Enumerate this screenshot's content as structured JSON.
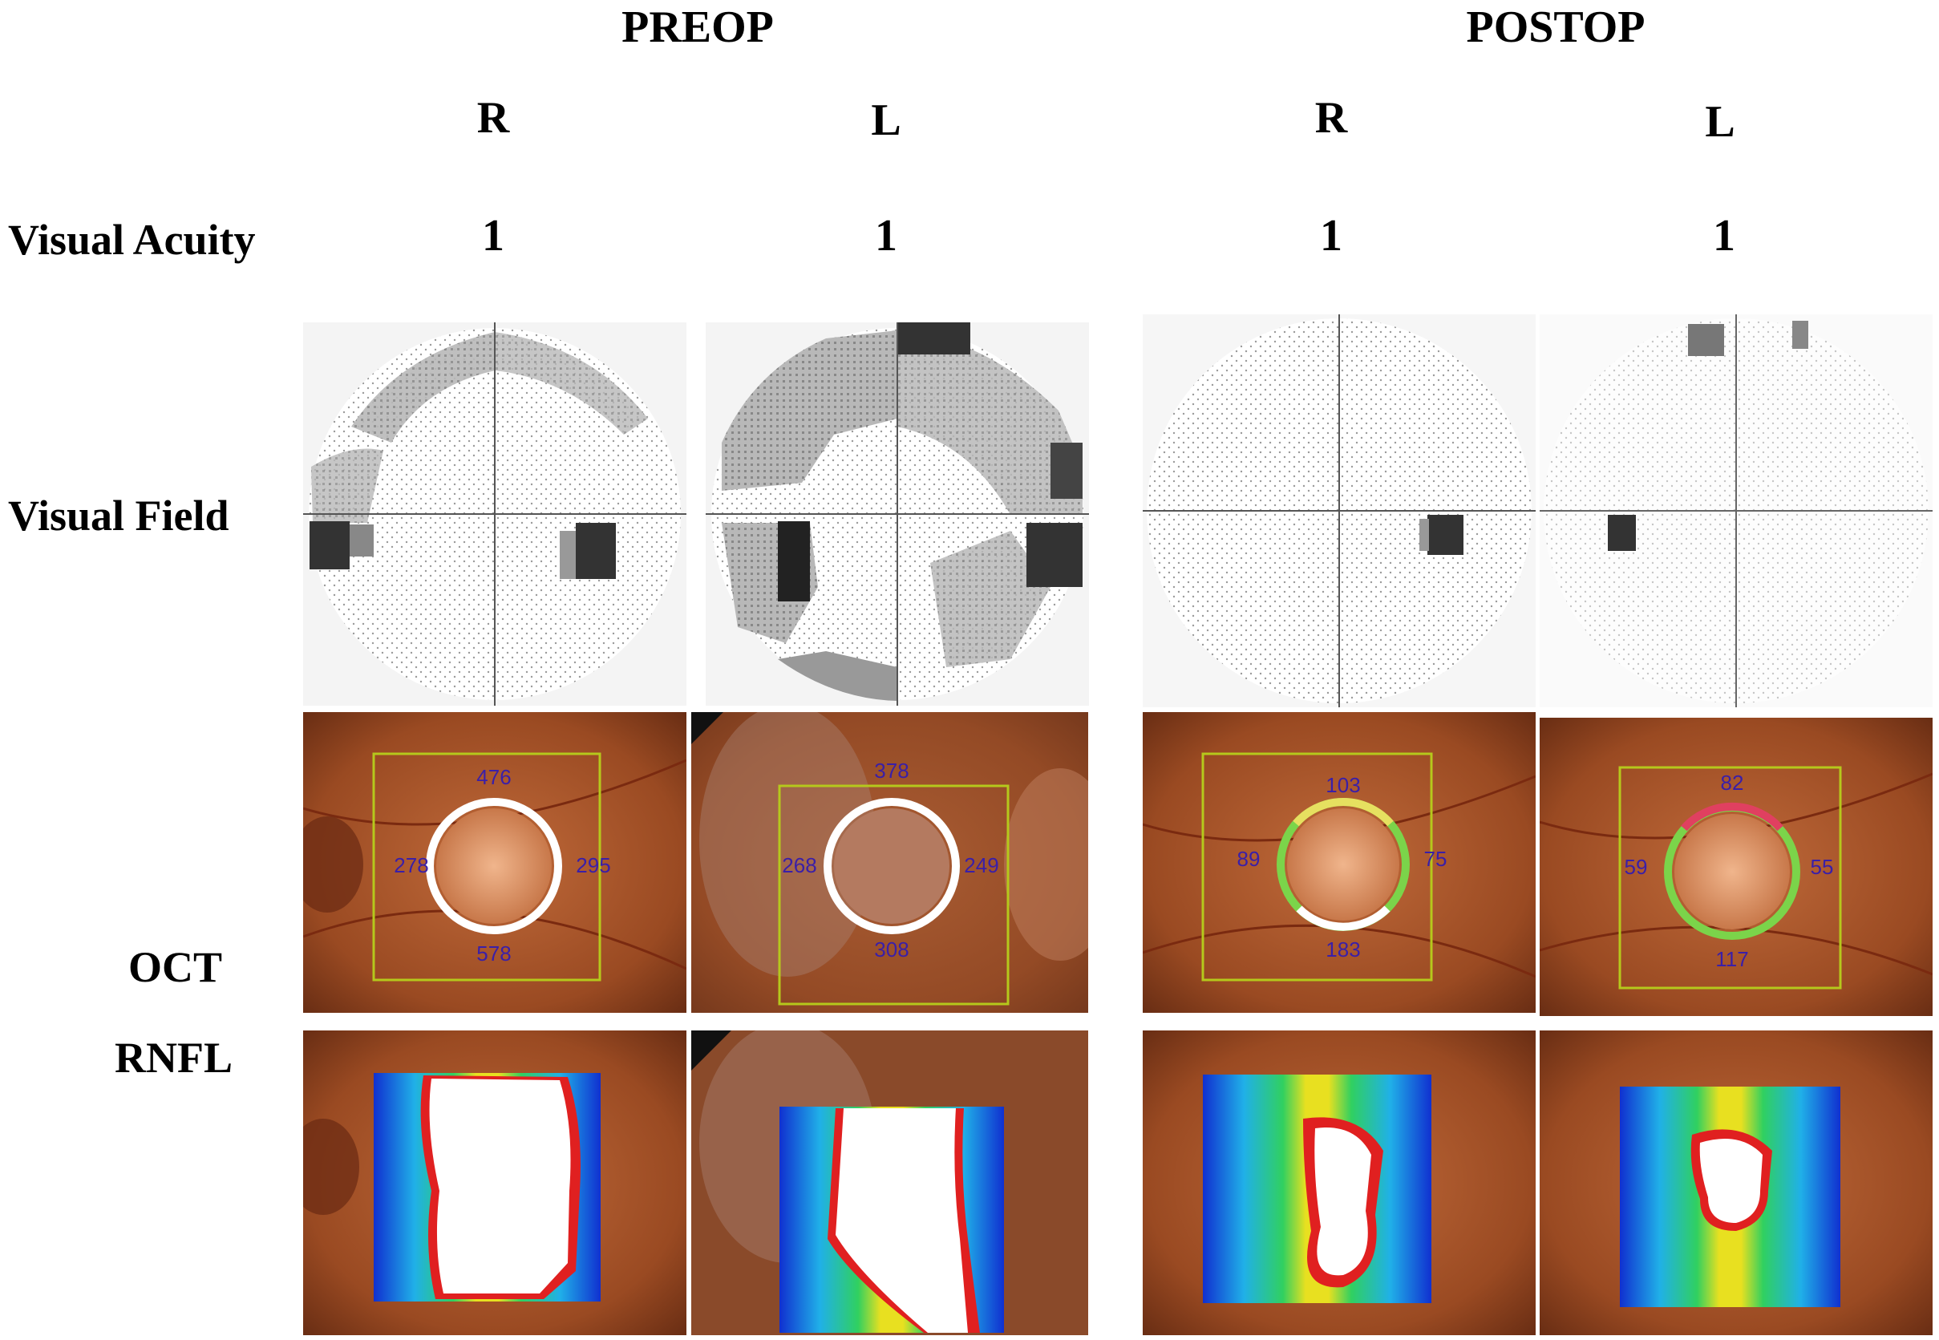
{
  "headers": {
    "preop": "PREOP",
    "postop": "POSTOP",
    "preop_r": "R",
    "preop_l": "L",
    "postop_r": "R",
    "postop_l": "L"
  },
  "row_labels": {
    "visual_acuity": "Visual Acuity",
    "visual_field": "Visual Field",
    "oct": "OCT",
    "rnfl": "RNFL"
  },
  "visual_acuity": {
    "preop_r": "1",
    "preop_l": "1",
    "postop_r": "1",
    "postop_l": "1"
  },
  "oct_values": {
    "preop_r": {
      "top": "476",
      "left": "278",
      "right": "295",
      "bottom": "578"
    },
    "preop_l": {
      "top": "378",
      "left": "268",
      "right": "249",
      "bottom": "308"
    },
    "postop_r": {
      "top": "103",
      "left": "89",
      "right": "75",
      "bottom": "183"
    },
    "postop_l": {
      "top": "82",
      "left": "59",
      "right": "55",
      "bottom": "117"
    }
  },
  "colors": {
    "fundus": "#a85a2a",
    "roi_box": "#b5c81c",
    "oct_numbers": "#3a1fa8",
    "ring_normal": "#7bd44a",
    "ring_borderline": "#e6e060",
    "ring_low": "#e04060"
  }
}
